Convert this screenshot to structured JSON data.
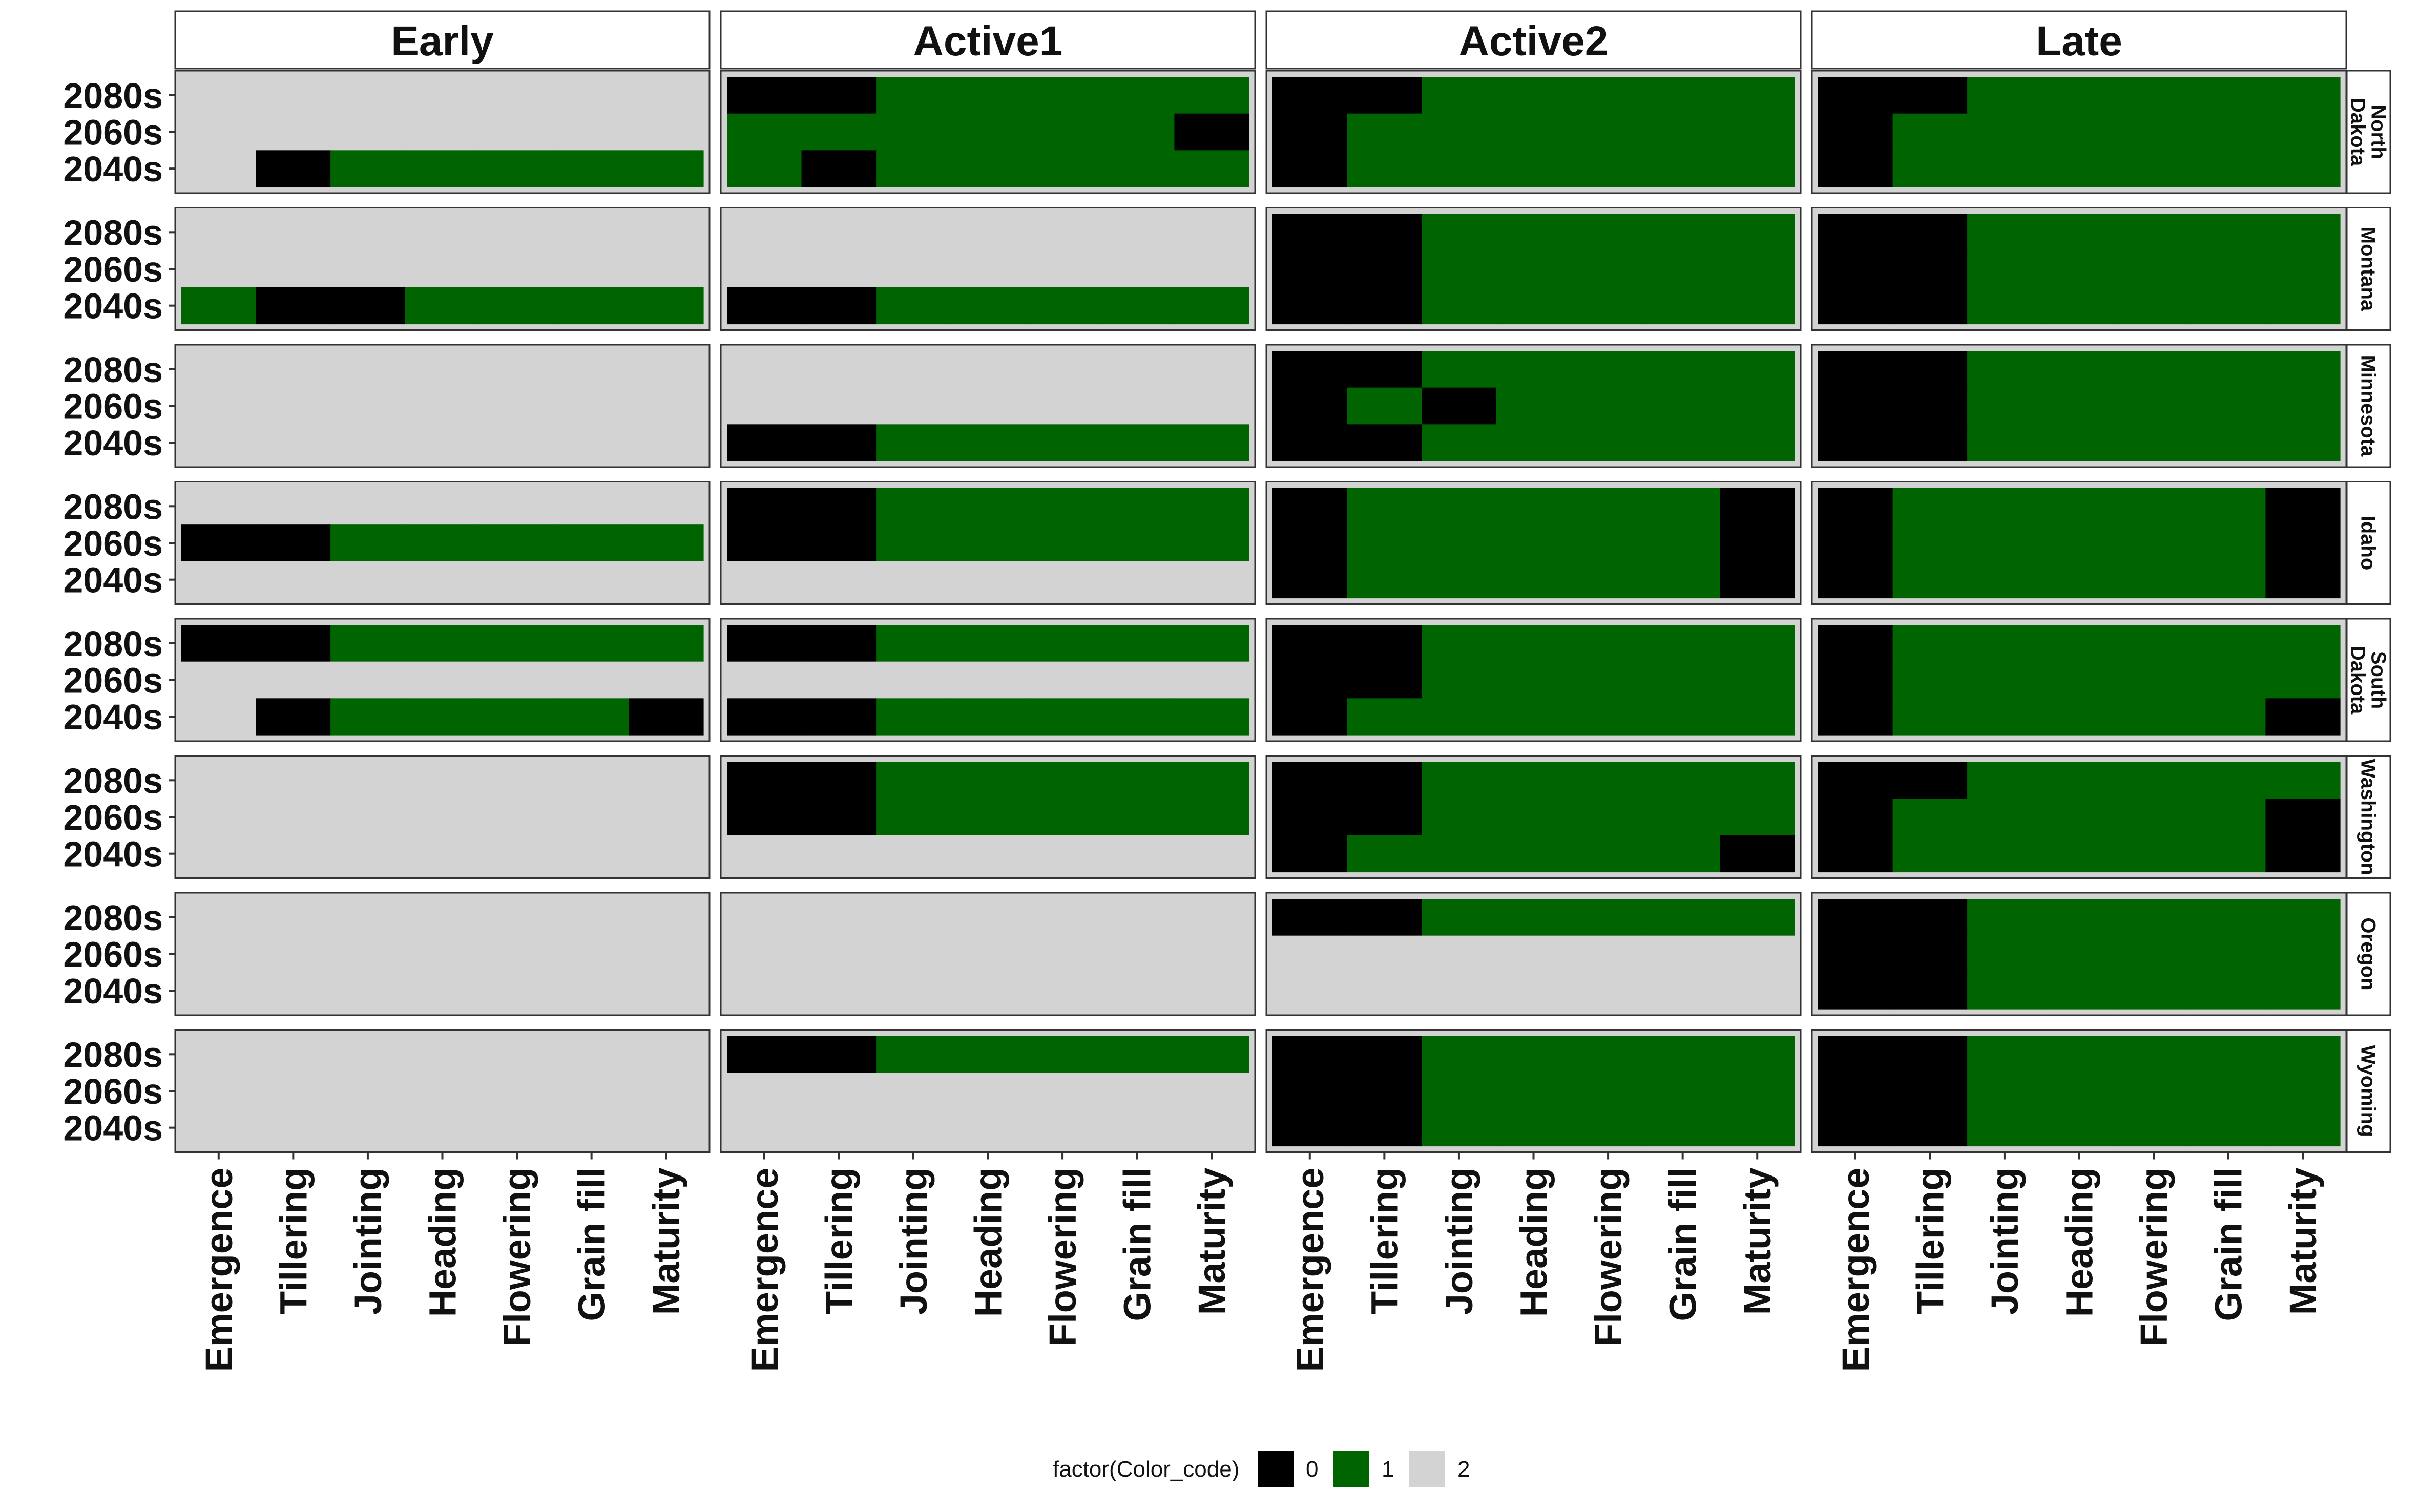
{
  "chart_data": {
    "type": "heatmap",
    "title": "",
    "columns": [
      "Early",
      "Active1",
      "Active2",
      "Late"
    ],
    "rows": [
      [
        "North",
        "Dakota"
      ],
      [
        "Montana"
      ],
      [
        "Minnesota"
      ],
      [
        "Idaho"
      ],
      [
        "South",
        "Dakota"
      ],
      [
        "Washington"
      ],
      [
        "Oregon"
      ],
      [
        "Wyoming"
      ]
    ],
    "x_categories": [
      "Emergence",
      "Tillering",
      "Jointing",
      "Heading",
      "Flowering",
      "Grain fill",
      "Maturity"
    ],
    "y_categories": [
      "2080s",
      "2060s",
      "2040s"
    ],
    "legend": {
      "title": "factor(Color_code)",
      "position": "bottom",
      "levels": [
        "0",
        "1",
        "2"
      ],
      "colors": [
        "#000000",
        "#006400",
        "#d3d3d3"
      ]
    },
    "cell_order": "panels listed by row then column; each panel = 3 rows (2080s, 2060s, 2040s) x 7 stages",
    "panels": [
      [
        [
          [
            2,
            2,
            2,
            2,
            2,
            2,
            2
          ],
          [
            2,
            2,
            2,
            2,
            2,
            2,
            2
          ],
          [
            2,
            0,
            1,
            1,
            1,
            1,
            1
          ]
        ],
        [
          [
            0,
            0,
            1,
            1,
            1,
            1,
            1
          ],
          [
            1,
            1,
            1,
            1,
            1,
            1,
            0
          ],
          [
            1,
            0,
            1,
            1,
            1,
            1,
            1
          ]
        ],
        [
          [
            0,
            0,
            1,
            1,
            1,
            1,
            1
          ],
          [
            0,
            1,
            1,
            1,
            1,
            1,
            1
          ],
          [
            0,
            1,
            1,
            1,
            1,
            1,
            1
          ]
        ],
        [
          [
            0,
            0,
            1,
            1,
            1,
            1,
            1
          ],
          [
            0,
            1,
            1,
            1,
            1,
            1,
            1
          ],
          [
            0,
            1,
            1,
            1,
            1,
            1,
            1
          ]
        ]
      ],
      [
        [
          [
            2,
            2,
            2,
            2,
            2,
            2,
            2
          ],
          [
            2,
            2,
            2,
            2,
            2,
            2,
            2
          ],
          [
            1,
            0,
            0,
            1,
            1,
            1,
            1
          ]
        ],
        [
          [
            2,
            2,
            2,
            2,
            2,
            2,
            2
          ],
          [
            2,
            2,
            2,
            2,
            2,
            2,
            2
          ],
          [
            0,
            0,
            1,
            1,
            1,
            1,
            1
          ]
        ],
        [
          [
            0,
            0,
            1,
            1,
            1,
            1,
            1
          ],
          [
            0,
            0,
            1,
            1,
            1,
            1,
            1
          ],
          [
            0,
            0,
            1,
            1,
            1,
            1,
            1
          ]
        ],
        [
          [
            0,
            0,
            1,
            1,
            1,
            1,
            1
          ],
          [
            0,
            0,
            1,
            1,
            1,
            1,
            1
          ],
          [
            0,
            0,
            1,
            1,
            1,
            1,
            1
          ]
        ]
      ],
      [
        [
          [
            2,
            2,
            2,
            2,
            2,
            2,
            2
          ],
          [
            2,
            2,
            2,
            2,
            2,
            2,
            2
          ],
          [
            2,
            2,
            2,
            2,
            2,
            2,
            2
          ]
        ],
        [
          [
            2,
            2,
            2,
            2,
            2,
            2,
            2
          ],
          [
            2,
            2,
            2,
            2,
            2,
            2,
            2
          ],
          [
            0,
            0,
            1,
            1,
            1,
            1,
            1
          ]
        ],
        [
          [
            0,
            0,
            1,
            1,
            1,
            1,
            1
          ],
          [
            0,
            1,
            0,
            1,
            1,
            1,
            1
          ],
          [
            0,
            0,
            1,
            1,
            1,
            1,
            1
          ]
        ],
        [
          [
            0,
            0,
            1,
            1,
            1,
            1,
            1
          ],
          [
            0,
            0,
            1,
            1,
            1,
            1,
            1
          ],
          [
            0,
            0,
            1,
            1,
            1,
            1,
            1
          ]
        ]
      ],
      [
        [
          [
            2,
            2,
            2,
            2,
            2,
            2,
            2
          ],
          [
            0,
            0,
            1,
            1,
            1,
            1,
            1
          ],
          [
            2,
            2,
            2,
            2,
            2,
            2,
            2
          ]
        ],
        [
          [
            0,
            0,
            1,
            1,
            1,
            1,
            1
          ],
          [
            0,
            0,
            1,
            1,
            1,
            1,
            1
          ],
          [
            2,
            2,
            2,
            2,
            2,
            2,
            2
          ]
        ],
        [
          [
            0,
            1,
            1,
            1,
            1,
            1,
            0
          ],
          [
            0,
            1,
            1,
            1,
            1,
            1,
            0
          ],
          [
            0,
            1,
            1,
            1,
            1,
            1,
            0
          ]
        ],
        [
          [
            0,
            1,
            1,
            1,
            1,
            1,
            0
          ],
          [
            0,
            1,
            1,
            1,
            1,
            1,
            0
          ],
          [
            0,
            1,
            1,
            1,
            1,
            1,
            0
          ]
        ]
      ],
      [
        [
          [
            0,
            0,
            1,
            1,
            1,
            1,
            1
          ],
          [
            2,
            2,
            2,
            2,
            2,
            2,
            2
          ],
          [
            2,
            0,
            1,
            1,
            1,
            1,
            0
          ]
        ],
        [
          [
            0,
            0,
            1,
            1,
            1,
            1,
            1
          ],
          [
            2,
            2,
            2,
            2,
            2,
            2,
            2
          ],
          [
            0,
            0,
            1,
            1,
            1,
            1,
            1
          ]
        ],
        [
          [
            0,
            0,
            1,
            1,
            1,
            1,
            1
          ],
          [
            0,
            0,
            1,
            1,
            1,
            1,
            1
          ],
          [
            0,
            1,
            1,
            1,
            1,
            1,
            1
          ]
        ],
        [
          [
            0,
            1,
            1,
            1,
            1,
            1,
            1
          ],
          [
            0,
            1,
            1,
            1,
            1,
            1,
            1
          ],
          [
            0,
            1,
            1,
            1,
            1,
            1,
            0
          ]
        ]
      ],
      [
        [
          [
            2,
            2,
            2,
            2,
            2,
            2,
            2
          ],
          [
            2,
            2,
            2,
            2,
            2,
            2,
            2
          ],
          [
            2,
            2,
            2,
            2,
            2,
            2,
            2
          ]
        ],
        [
          [
            0,
            0,
            1,
            1,
            1,
            1,
            1
          ],
          [
            0,
            0,
            1,
            1,
            1,
            1,
            1
          ],
          [
            2,
            2,
            2,
            2,
            2,
            2,
            2
          ]
        ],
        [
          [
            0,
            0,
            1,
            1,
            1,
            1,
            1
          ],
          [
            0,
            0,
            1,
            1,
            1,
            1,
            1
          ],
          [
            0,
            1,
            1,
            1,
            1,
            1,
            0
          ]
        ],
        [
          [
            0,
            0,
            1,
            1,
            1,
            1,
            1
          ],
          [
            0,
            1,
            1,
            1,
            1,
            1,
            0
          ],
          [
            0,
            1,
            1,
            1,
            1,
            1,
            0
          ]
        ]
      ],
      [
        [
          [
            2,
            2,
            2,
            2,
            2,
            2,
            2
          ],
          [
            2,
            2,
            2,
            2,
            2,
            2,
            2
          ],
          [
            2,
            2,
            2,
            2,
            2,
            2,
            2
          ]
        ],
        [
          [
            2,
            2,
            2,
            2,
            2,
            2,
            2
          ],
          [
            2,
            2,
            2,
            2,
            2,
            2,
            2
          ],
          [
            2,
            2,
            2,
            2,
            2,
            2,
            2
          ]
        ],
        [
          [
            0,
            0,
            1,
            1,
            1,
            1,
            1
          ],
          [
            2,
            2,
            2,
            2,
            2,
            2,
            2
          ],
          [
            2,
            2,
            2,
            2,
            2,
            2,
            2
          ]
        ],
        [
          [
            0,
            0,
            1,
            1,
            1,
            1,
            1
          ],
          [
            0,
            0,
            1,
            1,
            1,
            1,
            1
          ],
          [
            0,
            0,
            1,
            1,
            1,
            1,
            1
          ]
        ]
      ],
      [
        [
          [
            2,
            2,
            2,
            2,
            2,
            2,
            2
          ],
          [
            2,
            2,
            2,
            2,
            2,
            2,
            2
          ],
          [
            2,
            2,
            2,
            2,
            2,
            2,
            2
          ]
        ],
        [
          [
            0,
            0,
            1,
            1,
            1,
            1,
            1
          ],
          [
            2,
            2,
            2,
            2,
            2,
            2,
            2
          ],
          [
            2,
            2,
            2,
            2,
            2,
            2,
            2
          ]
        ],
        [
          [
            0,
            0,
            1,
            1,
            1,
            1,
            1
          ],
          [
            0,
            0,
            1,
            1,
            1,
            1,
            1
          ],
          [
            0,
            0,
            1,
            1,
            1,
            1,
            1
          ]
        ],
        [
          [
            0,
            0,
            1,
            1,
            1,
            1,
            1
          ],
          [
            0,
            0,
            1,
            1,
            1,
            1,
            1
          ],
          [
            0,
            0,
            1,
            1,
            1,
            1,
            1
          ]
        ]
      ]
    ]
  }
}
